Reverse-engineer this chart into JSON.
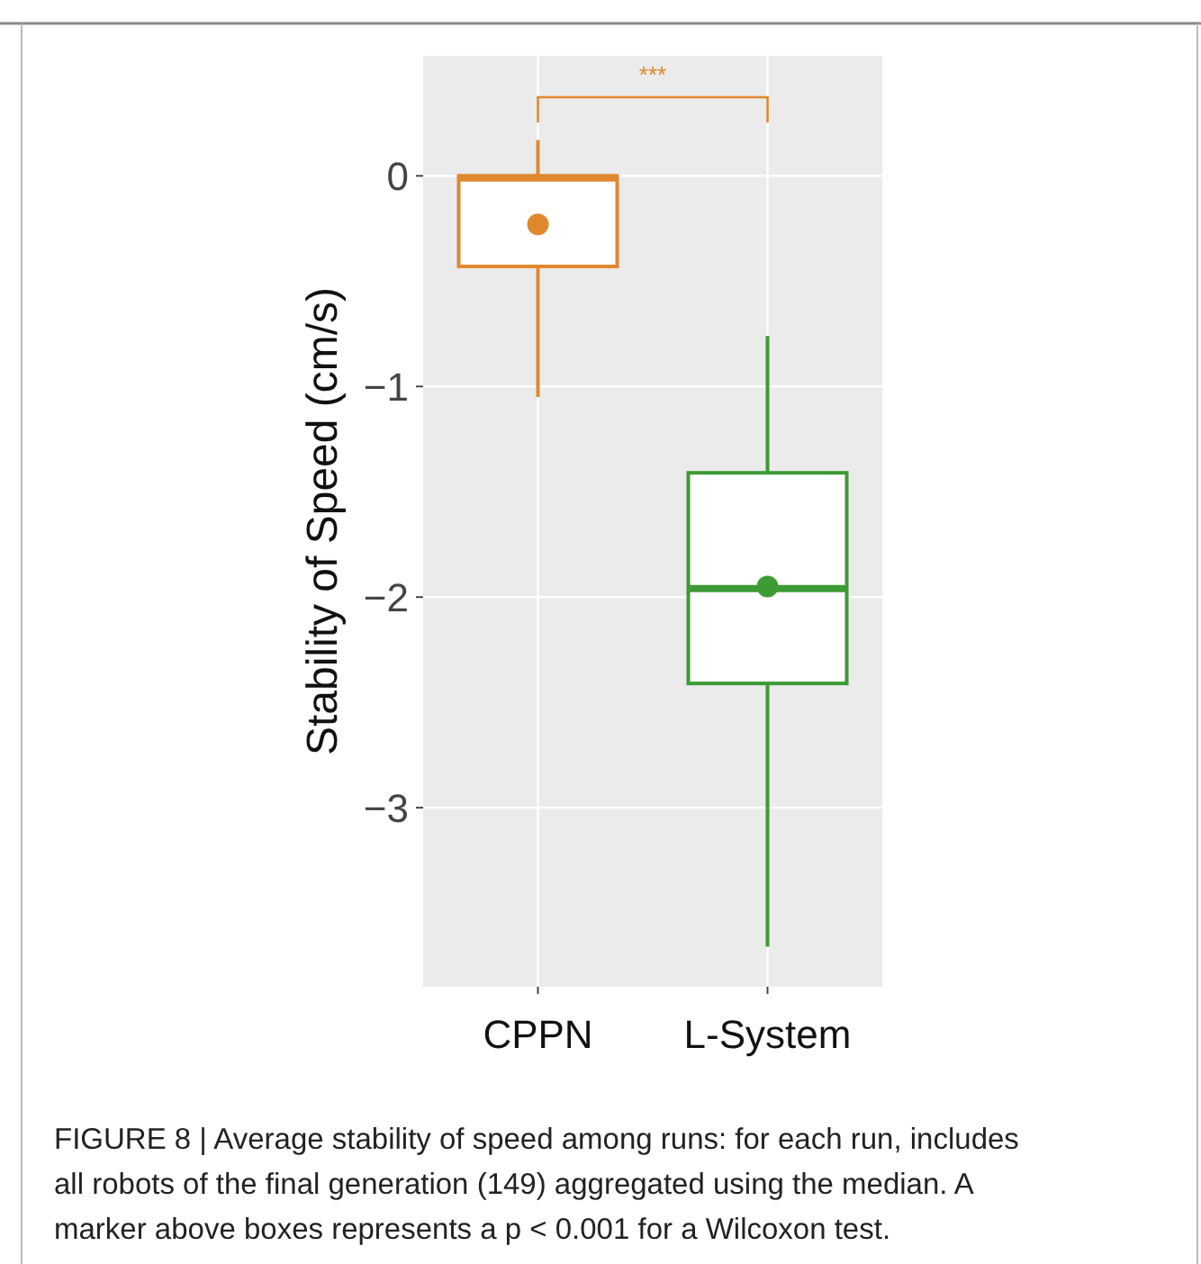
{
  "chart_data": {
    "type": "box",
    "ylabel": "Stability of Speed (cm/s)",
    "categories": [
      "CPPN",
      "L-System"
    ],
    "colors": [
      "#e0882e",
      "#3d9a34"
    ],
    "boxes": [
      {
        "low": -1.05,
        "q1": -0.43,
        "median": -0.01,
        "q3": 0,
        "high": 0.17,
        "mean": -0.23
      },
      {
        "low": -3.66,
        "q1": -2.41,
        "median": -1.96,
        "q3": -1.41,
        "high": -0.76,
        "mean": -1.95
      }
    ],
    "ylim": [
      -3.85,
      0.57
    ],
    "yticks": [
      {
        "value": 0,
        "label": "0"
      },
      {
        "value": -1,
        "label": "−1"
      },
      {
        "value": -2,
        "label": "−2"
      },
      {
        "value": -3,
        "label": "−3"
      }
    ],
    "grid": true,
    "annotations": [
      "***",
      "FIGURE 8 | Average stability of speed among runs: for each run, includes all robots of the final generation (149) aggregated using the median. A marker above boxes represents a p < 0.001 for a Wilcoxon test."
    ]
  }
}
